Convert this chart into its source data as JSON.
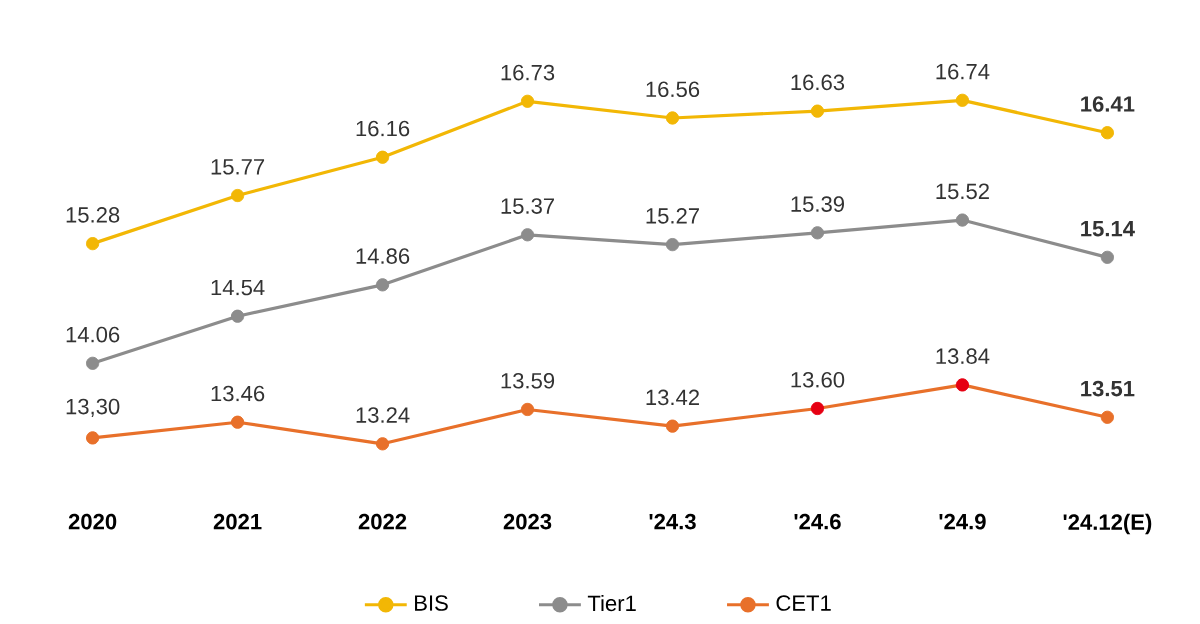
{
  "chart_data": {
    "type": "line",
    "categories": [
      "2020",
      "2021",
      "2022",
      "2023",
      "'24.3",
      "'24.6",
      "'24.9",
      "'24.12(E)"
    ],
    "series": [
      {
        "name": "BIS",
        "color": "#f2b705",
        "values": [
          15.28,
          15.77,
          16.16,
          16.73,
          16.56,
          16.63,
          16.74,
          16.41
        ],
        "value_labels": [
          "15.28",
          "15.77",
          "16.16",
          "16.73",
          "16.56",
          "16.63",
          "16.74",
          "**16.41**"
        ]
      },
      {
        "name": "Tier1",
        "color": "#8c8c8c",
        "values": [
          14.06,
          14.54,
          14.86,
          15.37,
          15.27,
          15.39,
          15.52,
          15.14
        ],
        "value_labels": [
          "14.06",
          "14.54",
          "14.86",
          "15.37",
          "15.27",
          "15.39",
          "15.52",
          "**15.14**"
        ]
      },
      {
        "name": "CET1",
        "color": "#e8702a",
        "colors": [
          "#e8702a",
          "#e8702a",
          "#e8702a",
          "#e8702a",
          "#e8702a",
          "#e60012",
          "#e60012",
          "#e8702a"
        ],
        "values": [
          13.3,
          13.46,
          13.24,
          13.59,
          13.42,
          13.6,
          13.84,
          13.51
        ],
        "value_labels": [
          "13,30",
          "13.46",
          "13.24",
          "13.59",
          "13.42",
          "13.60",
          "13.84",
          "**13.51**"
        ]
      }
    ],
    "legend": "bottom",
    "marker": "circle"
  }
}
